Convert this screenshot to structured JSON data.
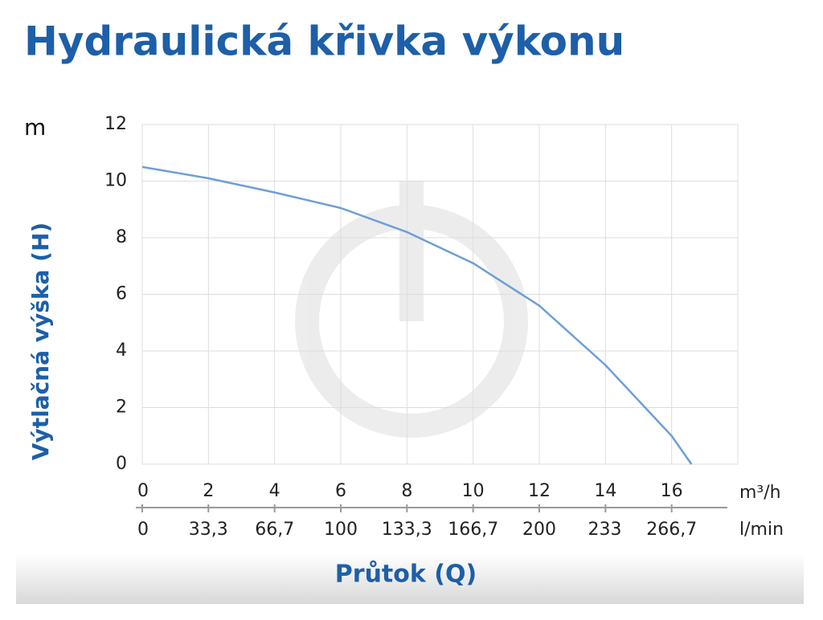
{
  "chart_data": {
    "type": "line",
    "title": "Hydraulická křivka výkonu",
    "y_unit": "m",
    "y_label": "Výtlačná výška (H)",
    "x_label": "Průtok (Q)",
    "x_unit": "m³/h",
    "x2_unit": "l/min",
    "x": [
      0,
      2,
      4,
      6,
      8,
      10,
      12,
      14,
      16,
      16.6
    ],
    "values": [
      10.5,
      10.1,
      9.6,
      9.05,
      8.2,
      7.1,
      5.6,
      3.5,
      1.0,
      0
    ],
    "color": "#6d9fd6",
    "xlim": [
      0,
      18
    ],
    "xticks": [
      0,
      2,
      4,
      6,
      8,
      10,
      12,
      14,
      16
    ],
    "x2lim": [
      0,
      300
    ],
    "x2ticks": [
      {
        "value": 0,
        "label": "0"
      },
      {
        "value": 33.3,
        "label": "33,3"
      },
      {
        "value": 66.7,
        "label": "66,7"
      },
      {
        "value": 100,
        "label": "100"
      },
      {
        "value": 133.3,
        "label": "133,3"
      },
      {
        "value": 166.7,
        "label": "166,7"
      },
      {
        "value": 200,
        "label": "200"
      },
      {
        "value": 233,
        "label": "233"
      },
      {
        "value": 266.7,
        "label": "266,7"
      }
    ],
    "ylim": [
      0,
      12
    ],
    "yticks": [
      0,
      2,
      4,
      6,
      8,
      10,
      12
    ],
    "grid": true
  }
}
